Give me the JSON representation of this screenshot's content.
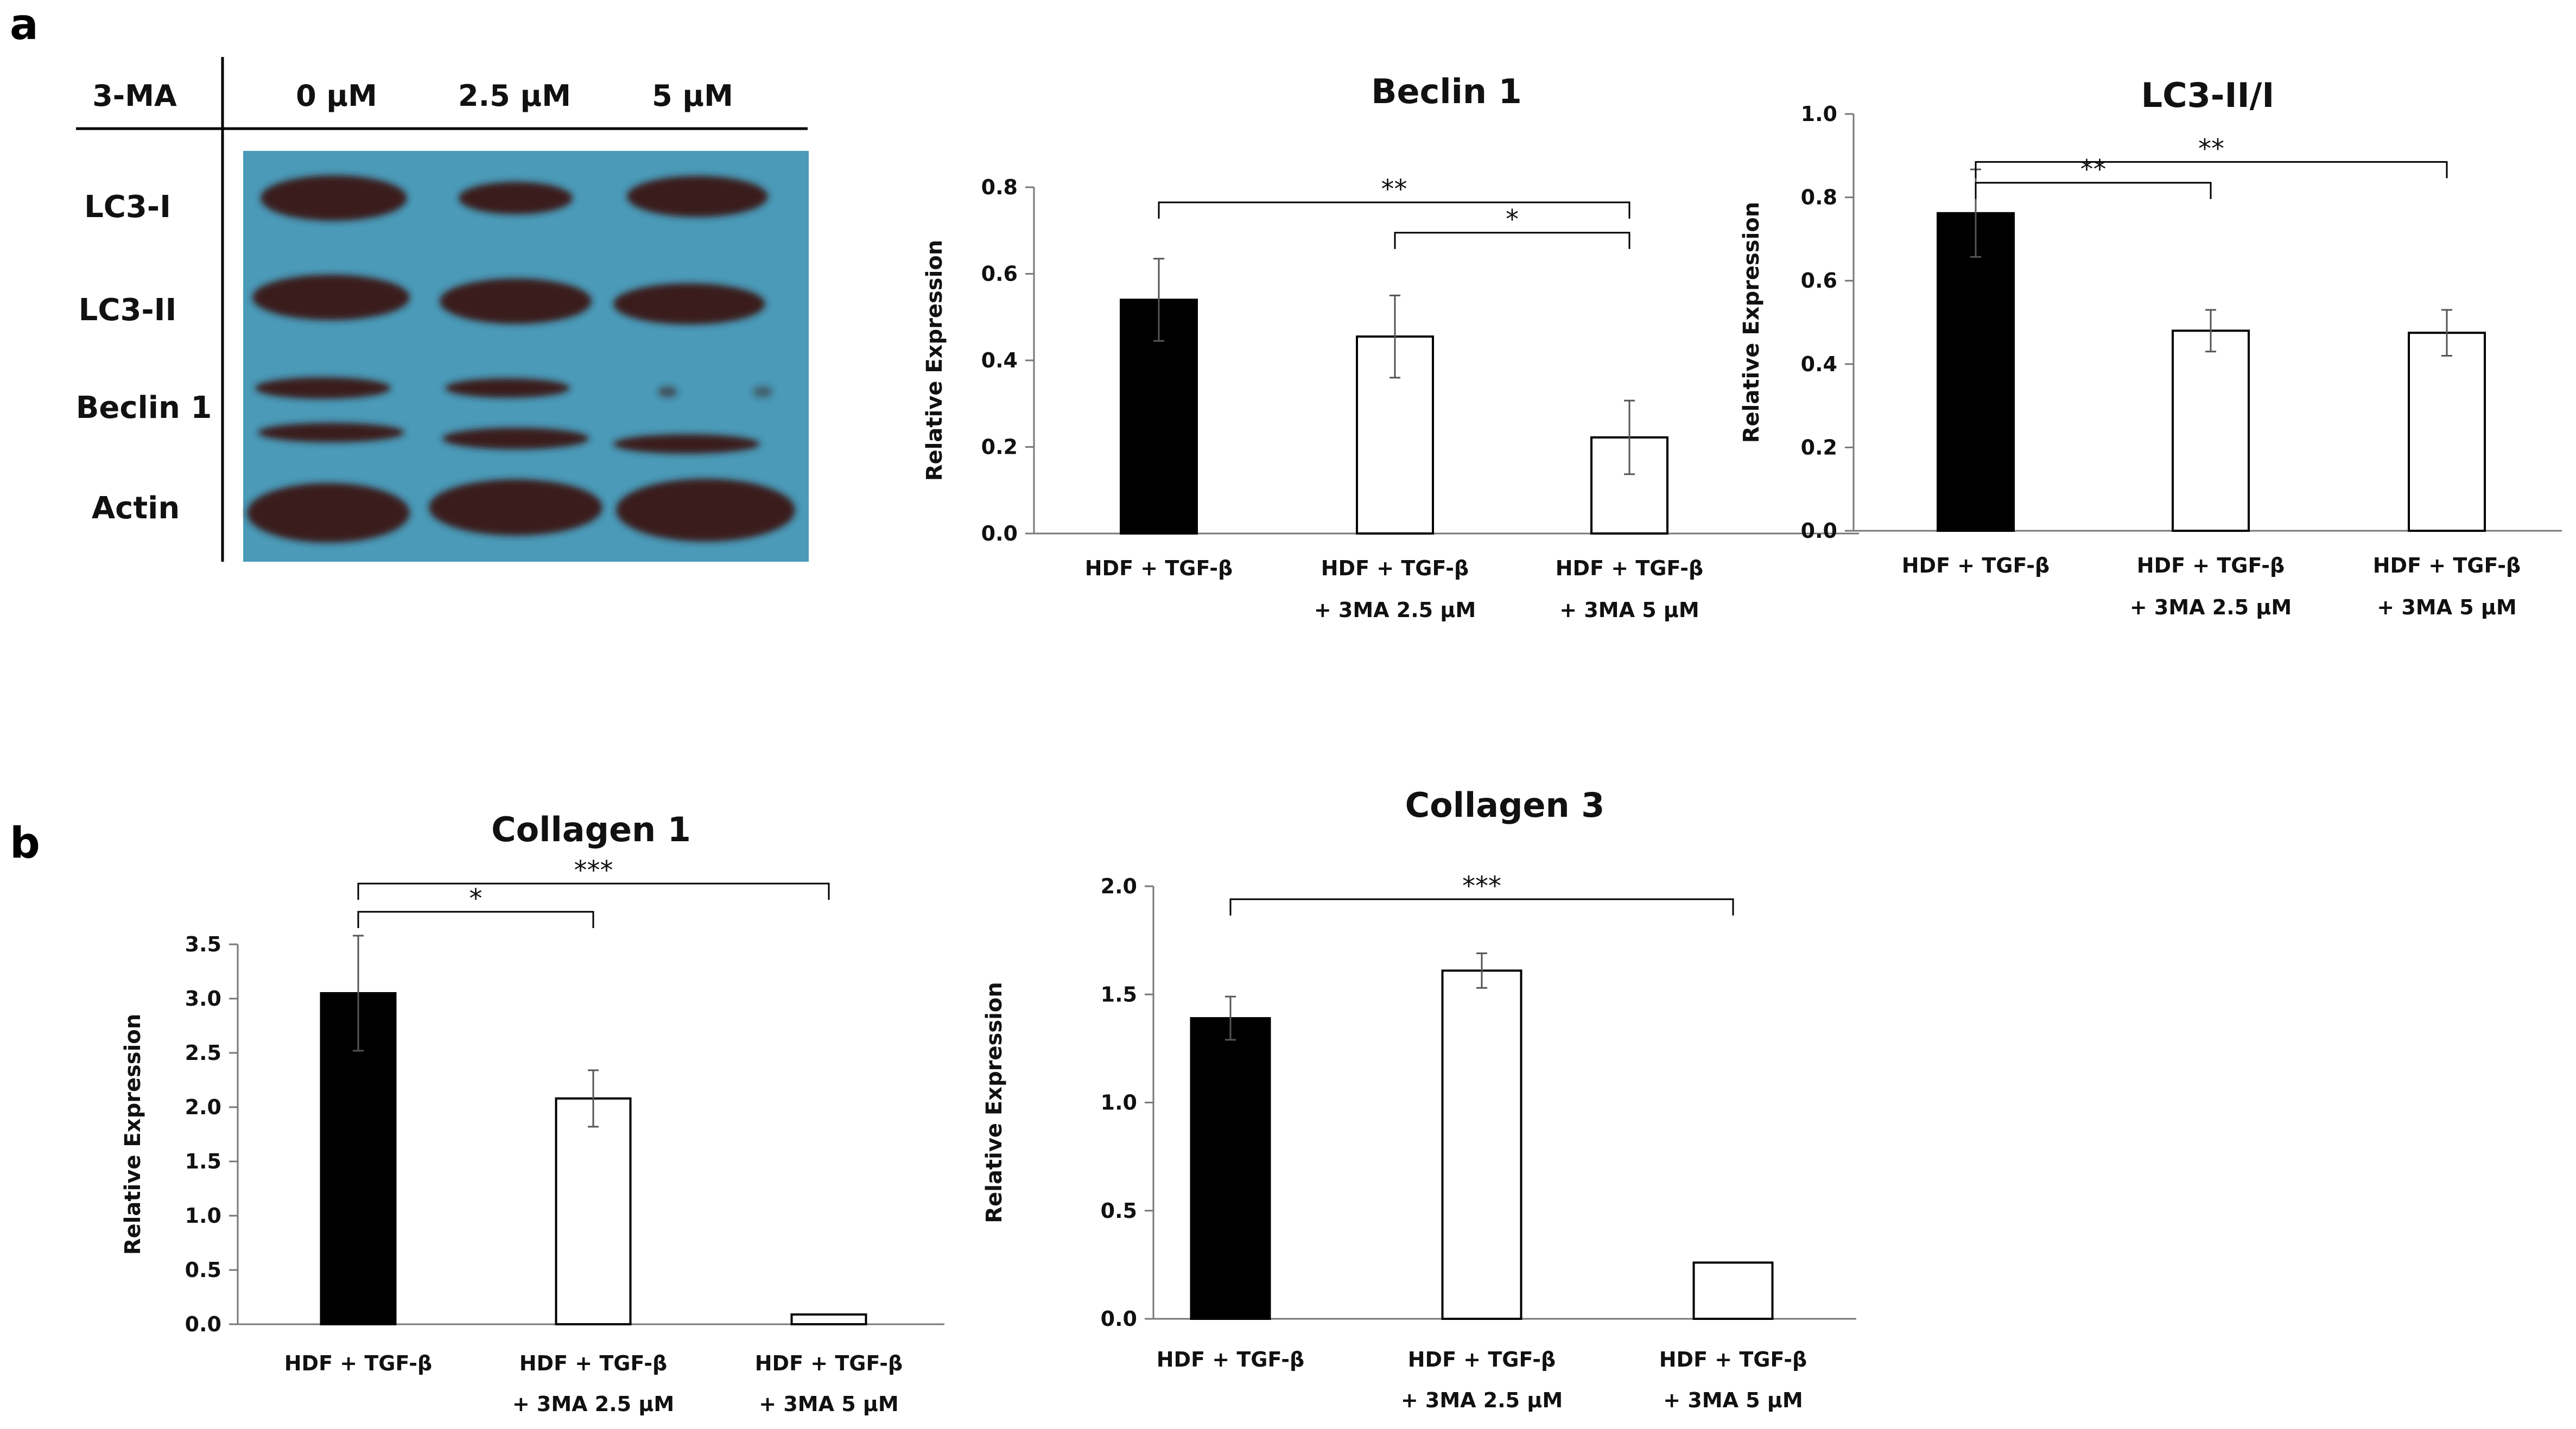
{
  "figure": {
    "panel_a_label": "a",
    "panel_b_label": "b"
  },
  "western_blot": {
    "treatment_label": "3-MA",
    "lanes": [
      "0 µM",
      "2.5 µM",
      "5 µM"
    ],
    "rows": [
      "LC3-I",
      "LC3-II",
      "Beclin 1",
      "Actin"
    ],
    "colors": {
      "membrane": "#4a9ab8",
      "band": "#3a1d1a"
    }
  },
  "chart_data": [
    {
      "id": "beclin1",
      "type": "bar",
      "title": "Beclin 1",
      "ylabel": "Relative Expression",
      "xlabel": "",
      "categories": [
        [
          "HDF + TGF-β",
          ""
        ],
        [
          "HDF + TGF-β",
          "+ 3MA 2.5 µM"
        ],
        [
          "HDF + TGF-β",
          "+ 3MA 5 µM"
        ]
      ],
      "values": [
        0.54,
        0.455,
        0.222
      ],
      "errors": [
        0.095,
        0.095,
        0.085
      ],
      "fills": [
        "#000000",
        "#ffffff",
        "#ffffff"
      ],
      "ylim": [
        0,
        0.8
      ],
      "yticks": [
        "0.0",
        "0.2",
        "0.4",
        "0.6",
        "0.8"
      ],
      "significance": [
        {
          "from": 0,
          "to": 2,
          "label": "**",
          "y": 0.765
        },
        {
          "from": 1,
          "to": 2,
          "label": "*",
          "y": 0.695
        }
      ]
    },
    {
      "id": "lc3",
      "type": "bar",
      "title": "LC3-II/I",
      "ylabel": "Relative Expression",
      "xlabel": "",
      "categories": [
        [
          "HDF + TGF-β",
          ""
        ],
        [
          "HDF + TGF-β",
          "+ 3MA 2.5 µM"
        ],
        [
          "HDF + TGF-β",
          "+ 3MA 5 µM"
        ]
      ],
      "values": [
        0.762,
        0.48,
        0.475
      ],
      "errors": [
        0.105,
        0.05,
        0.055
      ],
      "fills": [
        "#000000",
        "#ffffff",
        "#ffffff"
      ],
      "ylim": [
        0,
        1.0
      ],
      "yticks": [
        "0.0",
        "0.2",
        "0.4",
        "0.6",
        "0.8",
        "1.0"
      ],
      "significance": [
        {
          "from": 0,
          "to": 1,
          "label": "**",
          "y": 0.835
        },
        {
          "from": 0,
          "to": 2,
          "label": "**",
          "y": 0.885
        }
      ]
    },
    {
      "id": "collagen1",
      "type": "bar",
      "title": "Collagen 1",
      "ylabel": "Relative Expression",
      "xlabel": "",
      "categories": [
        [
          "HDF + TGF-β",
          ""
        ],
        [
          "HDF + TGF-β",
          "+ 3MA 2.5 µM"
        ],
        [
          "HDF + TGF-β",
          "+ 3MA 5 µM"
        ]
      ],
      "values": [
        3.05,
        2.08,
        0.09
      ],
      "errors": [
        0.53,
        0.26,
        0.01
      ],
      "fills": [
        "#000000",
        "#ffffff",
        "#ffffff"
      ],
      "ylim": [
        0,
        3.5
      ],
      "yticks": [
        "0.0",
        "0.5",
        "1.0",
        "1.5",
        "2.0",
        "2.5",
        "3.0",
        "3.5"
      ],
      "significance": [
        {
          "from": 0,
          "to": 1,
          "label": "*",
          "y": 3.8
        },
        {
          "from": 0,
          "to": 2,
          "label": "***",
          "y": 4.06
        }
      ]
    },
    {
      "id": "collagen3",
      "type": "bar",
      "title": "Collagen 3",
      "ylabel": "Relative Expression",
      "xlabel": "",
      "categories": [
        [
          "HDF + TGF-β",
          ""
        ],
        [
          "HDF + TGF-β",
          "+ 3MA 2.5 µM"
        ],
        [
          "HDF + TGF-β",
          "+ 3MA 5 µM"
        ]
      ],
      "values": [
        1.39,
        1.61,
        0.26
      ],
      "errors": [
        0.1,
        0.08,
        0.005
      ],
      "fills": [
        "#000000",
        "#ffffff",
        "#ffffff"
      ],
      "ylim": [
        0,
        2.0
      ],
      "yticks": [
        "0.0",
        "0.5",
        "1.0",
        "1.5",
        "2.0"
      ],
      "significance": [
        {
          "from": 0,
          "to": 2,
          "label": "***",
          "y": 1.94
        }
      ]
    }
  ]
}
